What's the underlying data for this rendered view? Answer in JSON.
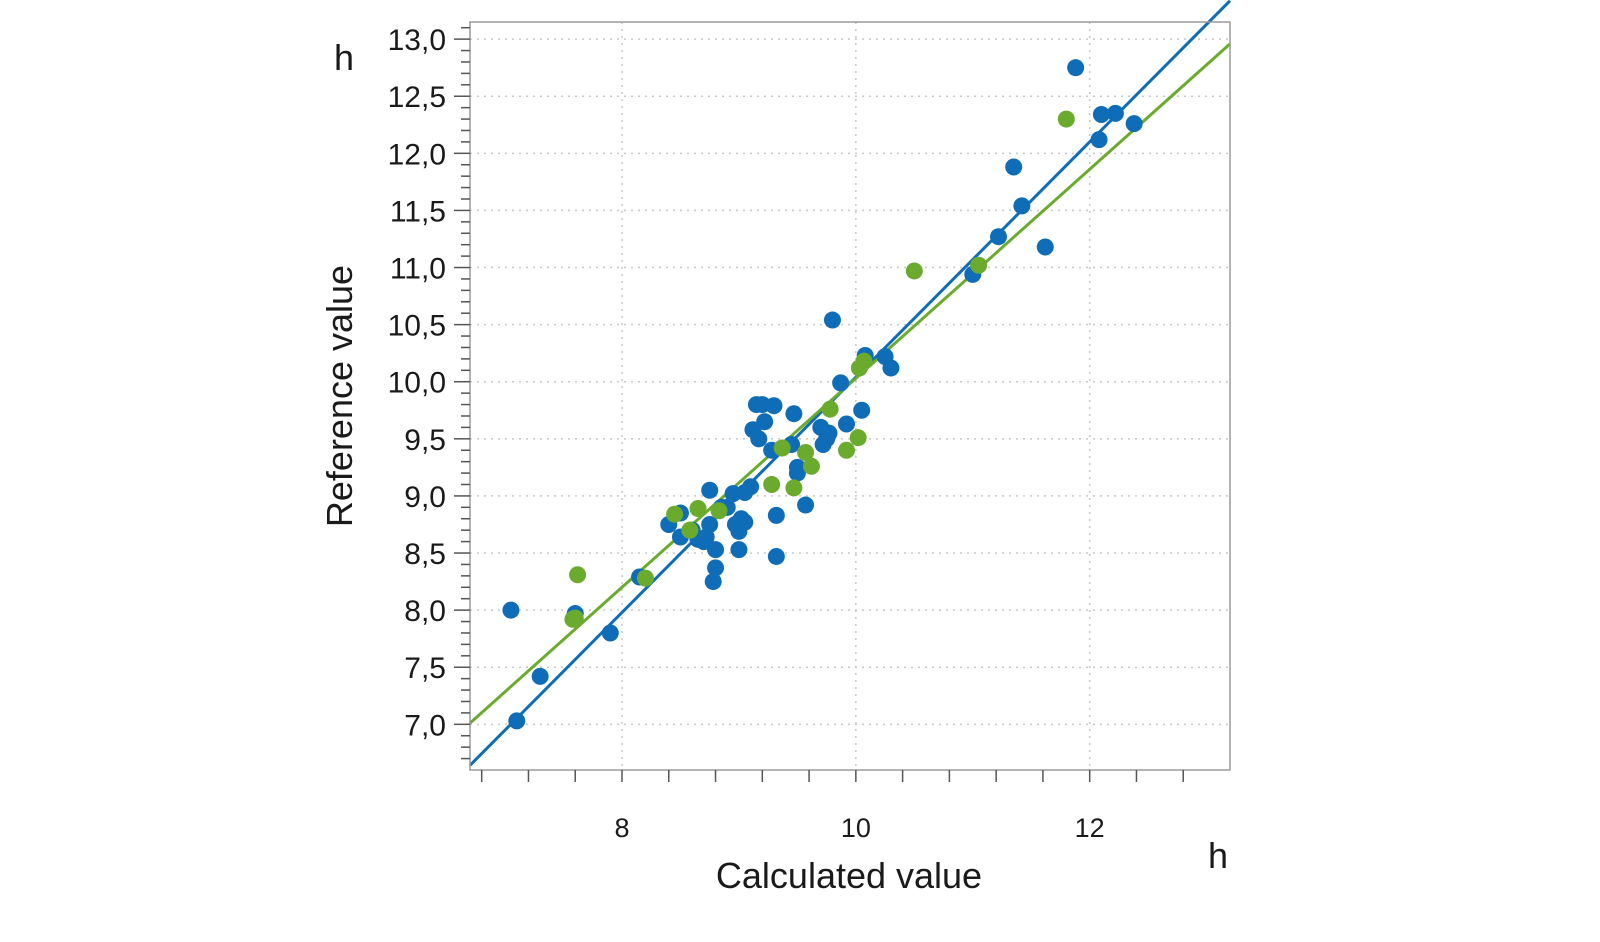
{
  "chart_data": {
    "type": "scatter",
    "xlabel": "Calculated value",
    "ylabel": "Reference value",
    "x_unit": "h",
    "y_unit": "h",
    "xlim": [
      6.7,
      13.2
    ],
    "ylim": [
      6.6,
      13.15
    ],
    "x_ticks": [
      8,
      10,
      12
    ],
    "x_tick_labels": [
      "8",
      "10",
      "12"
    ],
    "y_ticks": [
      7.0,
      7.5,
      8.0,
      8.5,
      9.0,
      9.5,
      10.0,
      10.5,
      11.0,
      11.5,
      12.0,
      12.5,
      13.0
    ],
    "y_tick_labels": [
      "7,0",
      "7,5",
      "8,0",
      "8,5",
      "9,0",
      "9,5",
      "10,0",
      "10,5",
      "11,0",
      "11,5",
      "12,0",
      "12,5",
      "13,0"
    ],
    "grid": true,
    "colors": {
      "blue": "#0f6db7",
      "green": "#6aab2e"
    },
    "series": [
      {
        "color": "#0f6db7",
        "points": [
          [
            7.05,
            8.0
          ],
          [
            7.1,
            7.03
          ],
          [
            7.3,
            7.42
          ],
          [
            7.6,
            7.97
          ],
          [
            7.9,
            7.8
          ],
          [
            8.15,
            8.29
          ],
          [
            8.4,
            8.75
          ],
          [
            8.5,
            8.85
          ],
          [
            8.5,
            8.64
          ],
          [
            8.6,
            8.7
          ],
          [
            8.65,
            8.62
          ],
          [
            8.7,
            8.6
          ],
          [
            8.72,
            8.64
          ],
          [
            8.75,
            8.75
          ],
          [
            8.75,
            9.05
          ],
          [
            8.78,
            8.25
          ],
          [
            8.8,
            8.37
          ],
          [
            8.8,
            8.53
          ],
          [
            8.85,
            8.9
          ],
          [
            8.9,
            8.9
          ],
          [
            8.95,
            9.02
          ],
          [
            8.97,
            8.75
          ],
          [
            9.0,
            8.69
          ],
          [
            9.0,
            8.53
          ],
          [
            9.02,
            8.8
          ],
          [
            9.05,
            8.77
          ],
          [
            9.05,
            9.03
          ],
          [
            9.1,
            9.08
          ],
          [
            9.12,
            9.58
          ],
          [
            9.15,
            9.8
          ],
          [
            9.17,
            9.5
          ],
          [
            9.2,
            9.8
          ],
          [
            9.22,
            9.65
          ],
          [
            9.28,
            9.4
          ],
          [
            9.3,
            9.79
          ],
          [
            9.32,
            8.47
          ],
          [
            9.32,
            8.83
          ],
          [
            9.45,
            9.45
          ],
          [
            9.47,
            9.72
          ],
          [
            9.5,
            9.2
          ],
          [
            9.5,
            9.25
          ],
          [
            9.57,
            8.92
          ],
          [
            9.7,
            9.6
          ],
          [
            9.72,
            9.45
          ],
          [
            9.75,
            9.5
          ],
          [
            9.77,
            9.55
          ],
          [
            9.8,
            10.54
          ],
          [
            9.87,
            9.99
          ],
          [
            9.92,
            9.63
          ],
          [
            10.05,
            9.75
          ],
          [
            10.08,
            10.23
          ],
          [
            10.25,
            10.22
          ],
          [
            10.3,
            10.12
          ],
          [
            11.0,
            10.94
          ],
          [
            11.22,
            11.27
          ],
          [
            11.35,
            11.88
          ],
          [
            11.42,
            11.54
          ],
          [
            11.62,
            11.18
          ],
          [
            11.88,
            12.75
          ],
          [
            12.08,
            12.12
          ],
          [
            12.1,
            12.34
          ],
          [
            12.22,
            12.35
          ],
          [
            12.38,
            12.26
          ]
        ],
        "fit": {
          "slope": 1.03,
          "intercept": -0.26
        }
      },
      {
        "color": "#6aab2e",
        "points": [
          [
            7.58,
            7.92
          ],
          [
            7.6,
            7.93
          ],
          [
            7.62,
            8.31
          ],
          [
            8.2,
            8.28
          ],
          [
            8.45,
            8.84
          ],
          [
            8.58,
            8.7
          ],
          [
            8.65,
            8.89
          ],
          [
            8.83,
            8.87
          ],
          [
            9.28,
            9.1
          ],
          [
            9.37,
            9.42
          ],
          [
            9.47,
            9.07
          ],
          [
            9.57,
            9.38
          ],
          [
            9.62,
            9.26
          ],
          [
            9.78,
            9.76
          ],
          [
            9.92,
            9.4
          ],
          [
            10.02,
            9.51
          ],
          [
            10.03,
            10.12
          ],
          [
            10.07,
            10.18
          ],
          [
            10.5,
            10.97
          ],
          [
            11.05,
            11.02
          ],
          [
            11.8,
            12.3
          ]
        ],
        "fit": {
          "slope": 0.915,
          "intercept": 0.88
        }
      }
    ]
  }
}
